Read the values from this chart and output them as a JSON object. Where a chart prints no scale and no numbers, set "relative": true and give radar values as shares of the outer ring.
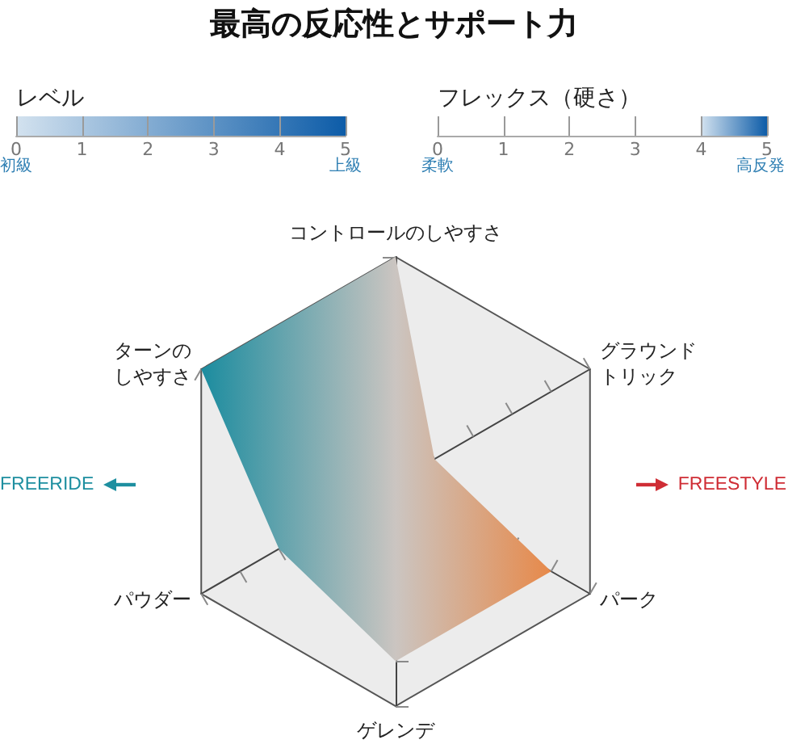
{
  "chart_data": [
    {
      "type": "bar",
      "title": "最高の反応性とサポート力",
      "orientation": "horizontal",
      "categories": [
        "レベル"
      ],
      "values": [
        5
      ],
      "color": "#0d5ca8",
      "xlim": [
        0,
        5
      ],
      "xticks": [
        0,
        1,
        2,
        3,
        4,
        5
      ],
      "annotations": [
        "初級",
        "上級"
      ]
    },
    {
      "type": "bar",
      "orientation": "horizontal",
      "categories": [
        "フレックス（硬さ）"
      ],
      "values": [
        1
      ],
      "base": [
        4
      ],
      "color": "#0d5ca8",
      "xlim": [
        0,
        5
      ],
      "xticks": [
        0,
        1,
        2,
        3,
        4,
        5
      ],
      "annotations": [
        "柔軟",
        "高反発"
      ]
    },
    {
      "type": "radar",
      "relative": true,
      "marker": "none",
      "categories": [
        "コントロールのしやすさ",
        "グラウンドトリック",
        "パーク",
        "ゲレンデ",
        "パウダー",
        "ターンのしやすさ"
      ],
      "values": [
        1,
        0.2,
        0.8,
        0.8,
        0.6,
        1
      ],
      "color": "#1b8c9f",
      "annotations": [
        "FREERIDE",
        "FREESTYLE"
      ]
    }
  ]
}
